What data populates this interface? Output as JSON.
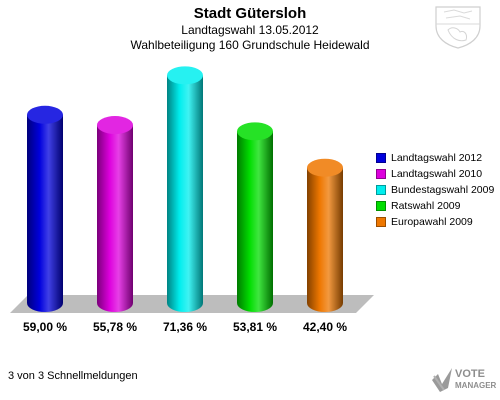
{
  "header": {
    "title": "Stadt Gütersloh",
    "subtitle": "Landtagswahl 13.05.2012",
    "subtitle2": "Wahlbeteiligung 160 Grundschule Heidewald"
  },
  "chart_data": {
    "type": "bar",
    "categories": [
      "Landtagswahl 2012",
      "Landtagswahl 2010",
      "Bundestagswahl 2009",
      "Ratswahl 2009",
      "Europawahl 2009"
    ],
    "values": [
      59.0,
      55.78,
      71.36,
      53.81,
      42.4
    ],
    "value_labels": [
      "59,00 %",
      "55,78 %",
      "71,36 %",
      "53,81 %",
      "42,40 %"
    ],
    "colors": [
      "#0000dd",
      "#dd00dd",
      "#00eeee",
      "#00dd00",
      "#ee7700"
    ],
    "legend_position": "right",
    "grid": false
  },
  "footer": {
    "text": "3 von 3 Schnellmeldungen"
  },
  "brand": {
    "line1": "VOTE",
    "line2": "MANAGER"
  },
  "icons": {
    "crest": "coat-of-arms-icon",
    "brand_logo": "vote-manager-logo-icon"
  }
}
